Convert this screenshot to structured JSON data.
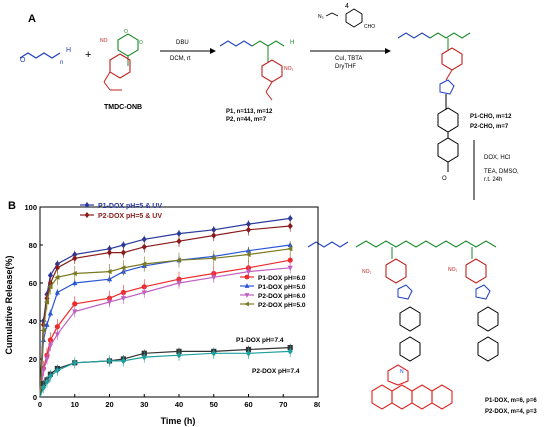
{
  "panel_a": {
    "label": "A",
    "reagent_1": "DBU",
    "conditions_1": "DCM, rt",
    "monomer_label": "TMDC-ONB",
    "polymers": [
      "P1, n=113, m=12",
      "P2, n=44, m=7"
    ],
    "reagent_2_number": "4",
    "conditions_2": [
      "CuI, TBTA",
      "DryTHF"
    ],
    "aldehyde_products": [
      "P1-CHO, m=12",
      "P2-CHO, m=7"
    ],
    "conditions_3": [
      "DOX, HCl",
      "TEA, DMSO,",
      "r.t. 24h"
    ],
    "dox_products": [
      "P1-DOX, m=6, p=6",
      "P2-DOX, m=4, p=3"
    ]
  },
  "chart_data": {
    "panel_label": "B",
    "type": "line",
    "xlabel": "Time (h)",
    "ylabel": "Cumulative Release(%)",
    "xlim": [
      0,
      80
    ],
    "ylim": [
      0,
      100
    ],
    "xticks": [
      0,
      10,
      20,
      30,
      40,
      50,
      60,
      70,
      80
    ],
    "yticks": [
      0,
      20,
      40,
      60,
      80,
      100
    ],
    "x": [
      0,
      1,
      2,
      3,
      5,
      10,
      20,
      24,
      30,
      40,
      50,
      60,
      72
    ],
    "series": [
      {
        "name": "P1-DOX pH=5 & UV",
        "color": "#2a3a9a",
        "marker": "diamond",
        "values": [
          0,
          40,
          54,
          64,
          70,
          75,
          78,
          80,
          83,
          86,
          88,
          91,
          94
        ]
      },
      {
        "name": "P2-DOX pH=5 & UV",
        "color": "#8b1a1a",
        "marker": "diamond",
        "values": [
          0,
          38,
          52,
          60,
          68,
          73,
          76,
          76,
          79,
          82,
          85,
          88,
          90
        ]
      },
      {
        "name": "P1-DOX pH=6.0",
        "color": "#ee2a2a",
        "marker": "circle",
        "values": [
          0,
          15,
          22,
          30,
          37,
          49,
          52,
          55,
          58,
          62,
          65,
          68,
          72
        ]
      },
      {
        "name": "P1-DOX pH=5.0",
        "color": "#2a56d6",
        "marker": "triangle",
        "values": [
          0,
          30,
          38,
          44,
          55,
          60,
          62,
          66,
          69,
          72,
          74,
          77,
          80
        ]
      },
      {
        "name": "P2-DOX pH=6.0",
        "color": "#c060c0",
        "marker": "triangle-down",
        "values": [
          0,
          14,
          20,
          27,
          33,
          45,
          50,
          52,
          55,
          60,
          63,
          66,
          68
        ]
      },
      {
        "name": "P2-DOX pH=5.0",
        "color": "#7a7a22",
        "marker": "triangle-left",
        "values": [
          0,
          35,
          50,
          58,
          63,
          65,
          66,
          68,
          70,
          72,
          73,
          75,
          78
        ]
      },
      {
        "name": "P1-DOX pH=7.4",
        "color": "#333333",
        "marker": "square",
        "values": [
          0,
          7,
          9,
          12,
          15,
          18,
          19,
          20,
          23,
          24,
          24,
          25,
          26
        ]
      },
      {
        "name": "P2-DOX pH=7.4",
        "color": "#1ea0a0",
        "marker": "diamond",
        "values": [
          0,
          5,
          8,
          11,
          14,
          18,
          19,
          19,
          21,
          22,
          23,
          23,
          24
        ]
      }
    ],
    "legend_top": [
      "P1-DOX pH=5 & UV",
      "P2-DOX pH=5 & UV"
    ],
    "legend_mid": [
      "P1-DOX pH=6.0",
      "P1-DOX pH=5.0",
      "P2-DOX pH=6.0",
      "P2-DOX pH=5.0"
    ],
    "inline_labels": [
      "P1-DOX pH=7.4",
      "P2-DOX pH=7.4"
    ]
  }
}
